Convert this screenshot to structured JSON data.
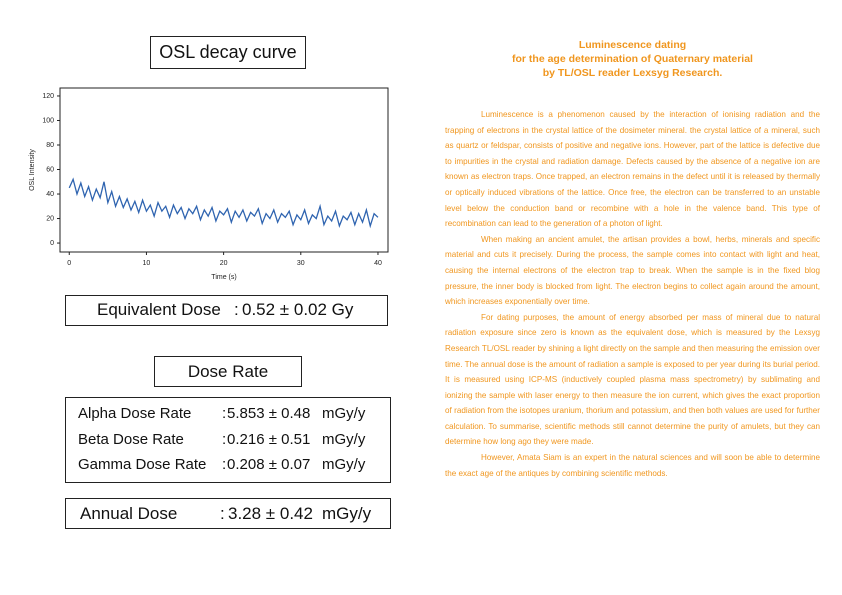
{
  "chart_data": {
    "type": "line",
    "title": "OSL decay curve",
    "x_label": "Time (s)",
    "y_label": "OSL Intensity",
    "x": [
      0,
      0.5,
      1,
      1.5,
      2,
      2.5,
      3,
      3.5,
      4,
      4.5,
      5,
      5.5,
      6,
      6.5,
      7,
      7.5,
      8,
      8.5,
      9,
      9.5,
      10,
      10.5,
      11,
      11.5,
      12,
      12.5,
      13,
      13.5,
      14,
      14.5,
      15,
      15.5,
      16,
      16.5,
      17,
      17.5,
      18,
      18.5,
      19,
      19.5,
      20,
      20.5,
      21,
      21.5,
      22,
      22.5,
      23,
      23.5,
      24,
      24.5,
      25,
      25.5,
      26,
      26.5,
      27,
      27.5,
      28,
      28.5,
      29,
      29.5,
      30,
      30.5,
      31,
      31.5,
      32,
      32.5,
      33,
      33.5,
      34,
      34.5,
      35,
      35.5,
      36,
      36.5,
      37,
      37.5,
      38,
      38.5,
      39,
      39.5,
      40
    ],
    "series": [
      {
        "name": "OSL",
        "color": "#2f64b0",
        "values": [
          45,
          52,
          40,
          49,
          38,
          46,
          35,
          44,
          37,
          50,
          33,
          42,
          30,
          38,
          29,
          36,
          27,
          34,
          25,
          35,
          26,
          31,
          22,
          33,
          26,
          30,
          21,
          31,
          24,
          29,
          20,
          28,
          24,
          30,
          19,
          27,
          22,
          29,
          18,
          26,
          23,
          28,
          17,
          26,
          21,
          27,
          18,
          25,
          22,
          28,
          16,
          24,
          20,
          27,
          17,
          24,
          21,
          26,
          15,
          23,
          19,
          27,
          16,
          23,
          20,
          30,
          15,
          22,
          18,
          26,
          14,
          22,
          19,
          25,
          15,
          24,
          17,
          27,
          14,
          24,
          21
        ]
      }
    ],
    "xlim": [
      -1.2,
      41.3
    ],
    "ylim": [
      -7.3,
      126.5
    ],
    "xticks": [
      0,
      10,
      20,
      30,
      40
    ],
    "yticks": [
      0,
      20,
      40,
      60,
      80,
      100,
      120
    ]
  },
  "equivalent_dose": {
    "label": "Equivalent Dose",
    "separator": ":",
    "value": "0.52 ± 0.02 Gy"
  },
  "dose_rate": {
    "title": "Dose Rate",
    "rows": [
      {
        "label": "Alpha Dose Rate",
        "separator": ":",
        "value": "5.853 ± 0.48",
        "unit": "mGy/y"
      },
      {
        "label": "Beta Dose Rate",
        "separator": ":",
        "value": "0.216 ± 0.51",
        "unit": "mGy/y"
      },
      {
        "label": "Gamma Dose Rate",
        "separator": ":",
        "value": "0.208 ± 0.07",
        "unit": "mGy/y"
      }
    ]
  },
  "annual_dose": {
    "label": "Annual Dose",
    "separator": ":",
    "value": "3.28 ± 0.42",
    "unit": "mGy/y"
  },
  "article": {
    "title": [
      "Luminescence dating",
      "for the age determination of Quaternary material",
      "by TL/OSL reader Lexsyg Research."
    ],
    "paragraphs": [
      "Luminescence is a phenomenon caused by the interaction of ionising radiation and the trapping of electrons in the crystal lattice of the dosimeter mineral. the crystal lattice of a mineral, such as quartz or feldspar, consists of positive and negative ions. However, part of the lattice is defective due to impurities in the crystal and radiation damage. Defects caused by the absence of a negative ion are known as electron traps. Once trapped, an electron remains in the defect until it is released by thermally or optically induced vibrations of the lattice. Once free, the electron can be transferred to an unstable level below the conduction band or recombine with a hole in the valence band. This type of recombination can lead to the generation of a photon of light.",
      "When making an ancient amulet, the artisan provides a bowl, herbs, minerals and specific material and cuts it precisely. During the process, the sample comes into contact with light and heat, causing the internal electrons of the electron trap to break. When the sample is in the fixed blog pressure, the inner body is blocked from light. The electron begins to collect again around the amount, which increases exponentially over time.",
      "For dating purposes, the amount of energy absorbed per mass of mineral due to natural radiation exposure since zero is known as the equivalent dose, which is measured by the Lexsyg Research TL/OSL reader by shining a light directly on the sample and then measuring the emission over time. The annual dose is the amount of radiation a sample is exposed to per year during its burial period. It is measured using ICP-MS (inductively coupled plasma mass spectrometry) by sublimating and ionizing the sample with laser energy to then measure the ion current, which gives the exact proportion of radiation from the isotopes uranium, thorium and potassium, and then both values are used for further calculation. To summarise, scientific methods still cannot determine the purity of amulets, but they can determine how long ago they were made.",
      "However, Amata Siam is an expert in the natural sciences and will soon be able to determine the exact age of the antiques by combining scientific methods."
    ]
  }
}
